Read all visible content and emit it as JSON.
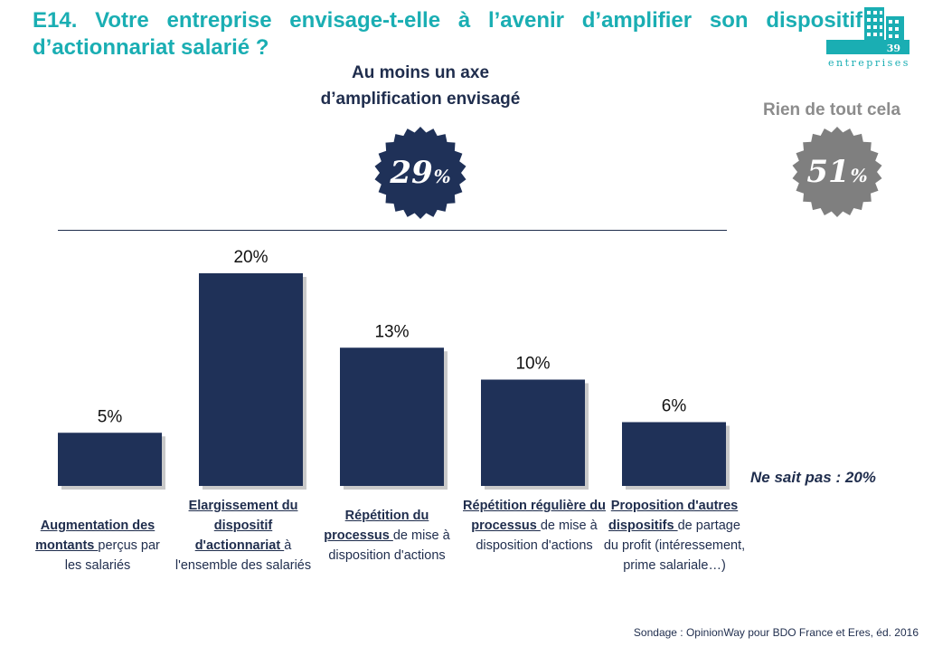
{
  "header": {
    "title": "E14. Votre entreprise envisage-t-elle à l’avenir d’amplifier son dispositif d’actionnariat salarié ?",
    "logo_number": "39",
    "logo_word": "entreprises"
  },
  "summary": {
    "axe_title_line1": "Au moins un axe",
    "axe_title_line2": "d’amplification envisagé",
    "axe_value": "29",
    "axe_unit": "%",
    "none_title": "Rien de tout cela",
    "none_value": "51",
    "none_unit": "%"
  },
  "labels": [
    {
      "bold": "Augmentation des montants ",
      "rest": "perçus par les salariés"
    },
    {
      "bold": "Elargissement du dispositif d'actionnariat ",
      "rest": "à l'ensemble des salariés"
    },
    {
      "bold": "Répétition du processus ",
      "rest": "de mise à disposition d'actions"
    },
    {
      "bold": "Répétition régulière du processus ",
      "rest": "de mise à disposition d'actions"
    },
    {
      "bold": "Proposition d'autres dispositifs ",
      "rest": "de partage du profit (intéressement, prime salariale…)"
    }
  ],
  "nsp": "Ne sait pas : 20%",
  "source": "Sondage : OpinionWay pour BDO France et Eres, éd. 2016",
  "colors": {
    "bar": "#1f3158",
    "teal": "#1aaeb3",
    "grey": "#7f7f7f",
    "navy": "#1f2d4d"
  },
  "chart_data": {
    "type": "bar",
    "categories": [
      "Augmentation des montants perçus par les salariés",
      "Elargissement du dispositif d'actionnariat à l'ensemble des salariés",
      "Répétition du processus de mise à disposition d'actions",
      "Répétition régulière du processus de mise à disposition d'actions",
      "Proposition d'autres dispositifs de partage du profit (intéressement, prime salariale…)"
    ],
    "values": [
      5,
      20,
      13,
      10,
      6
    ],
    "value_labels": [
      "5%",
      "20%",
      "13%",
      "10%",
      "6%"
    ],
    "ylim": [
      0,
      20
    ],
    "grid": false,
    "legend": "none"
  }
}
